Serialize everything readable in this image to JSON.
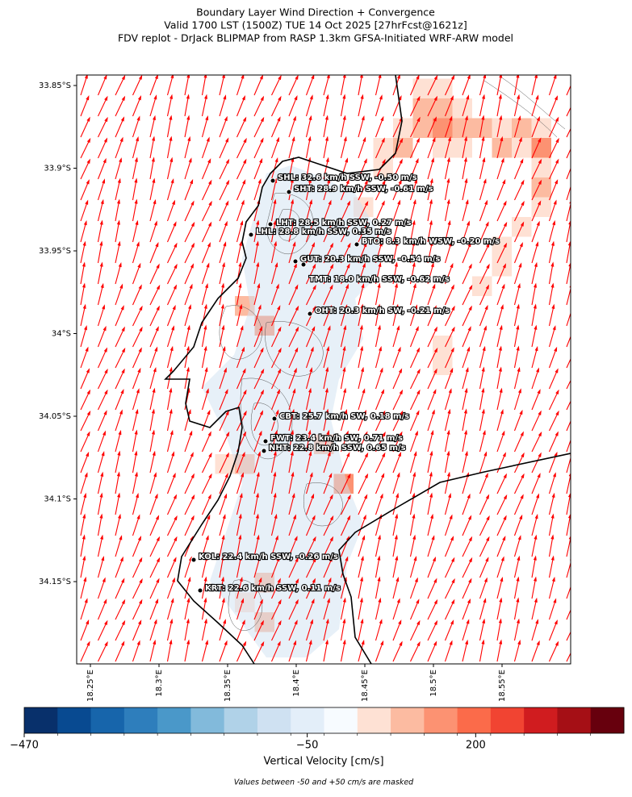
{
  "chart_data": {
    "type": "map",
    "title": [
      "Boundary Layer Wind Direction + Convergence",
      "Valid 1700 LST (1500Z) TUE 14 Oct 2025 [27hrFcst@1621z]",
      "FDV replot - DrJack BLIPMAP from RASP 1.3km GFSA-Initiated WRF-ARW model"
    ],
    "stations": [
      {
        "label": "SHL: 32.6 km/h SSW, -0.50 m/s"
      },
      {
        "label": "SHT: 28.9 km/h SSW, -0.61 m/s"
      },
      {
        "label": "LHT: 28.5 km/h SSW, 0.27 m/s"
      },
      {
        "label": "LHL: 28.8 km/h SSW, 0.35 m/s"
      },
      {
        "label": "BTO: 8.3 km/h WSW, -0.20 m/s"
      },
      {
        "label": "GUT: 20.3 km/h SSW, -0.54 m/s"
      },
      {
        "label": "TMT: 18.0 km/h SSW, -0.62 m/s"
      },
      {
        "label": "OHT: 20.3 km/h SW, -0.21 m/s"
      },
      {
        "label": "CBT: 25.7 km/h SW, 0.18 m/s"
      },
      {
        "label": "FWT: 23.4 km/h SW, 0.71 m/s"
      },
      {
        "label": "NHT: 22.8 km/h SSW, 0.65 m/s"
      },
      {
        "label": "KOL: 22.4 km/h SSW, -0.26 m/s"
      },
      {
        "label": "KRT: 22.6 km/h SSW, 0.11 m/s"
      }
    ],
    "lat_ticks": [
      {
        "value": -33.85,
        "label": "33.85°S"
      },
      {
        "value": -33.9,
        "label": "33.9°S"
      },
      {
        "value": -33.95,
        "label": "33.95°S"
      },
      {
        "value": -34,
        "label": "34°S"
      },
      {
        "value": -34.05,
        "label": "34.05°S"
      },
      {
        "value": -34.1,
        "label": "34.1°S"
      },
      {
        "value": -34.15,
        "label": "34.15°S"
      }
    ],
    "lon_ticks": [
      {
        "value": 18.25,
        "label": "18.25°E"
      },
      {
        "value": 18.3,
        "label": "18.3°E"
      },
      {
        "value": 18.35,
        "label": "18.35°E"
      },
      {
        "value": 18.4,
        "label": "18.4°E"
      },
      {
        "value": 18.45,
        "label": "18.45°E"
      },
      {
        "value": 18.5,
        "label": "18.5°E"
      },
      {
        "value": 18.55,
        "label": "18.55°E"
      }
    ],
    "colorbar": {
      "colors": [
        "#08306b",
        "#084a91",
        "#1765ab",
        "#2e7ebc",
        "#4a98c9",
        "#82badb",
        "#b0d2e8",
        "#cfe1f2",
        "#e3eef9",
        "#f7fbff",
        "#fee1d4",
        "#fcbba1",
        "#fc9272",
        "#fb6b4a",
        "#f14432",
        "#d01c1f",
        "#a50f15",
        "#67000d"
      ],
      "clim": [
        -470,
        420
      ],
      "ticks": [
        {
          "value": -470,
          "label": "−470"
        },
        {
          "value": -50,
          "label": "−50"
        },
        200
      ],
      "label": "Vertical Velocity [cm/s]"
    },
    "note": "Values between -50 and +50 cm/s are masked"
  }
}
